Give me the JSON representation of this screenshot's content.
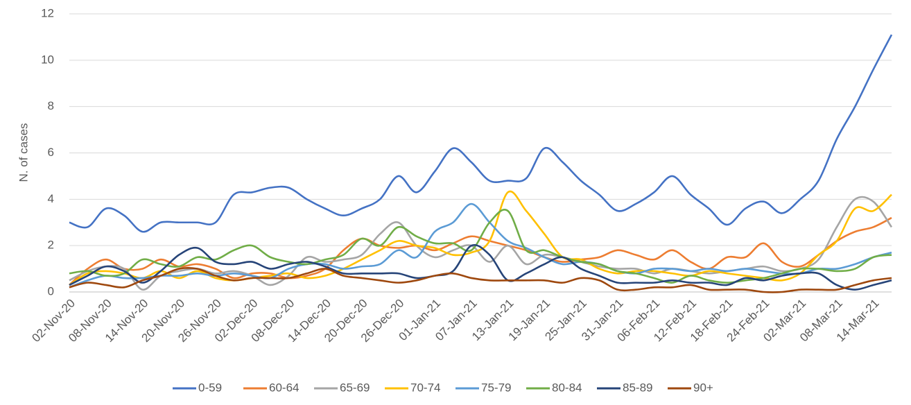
{
  "chart_data": {
    "type": "line",
    "y_label": "N. of cases",
    "categories": [
      "02-Nov-20",
      null,
      "08-Nov-20",
      null,
      "14-Nov-20",
      null,
      "20-Nov-20",
      null,
      "26-Nov-20",
      null,
      "02-Dec-20",
      null,
      "08-Dec-20",
      null,
      "14-Dec-20",
      null,
      "20-Dec-20",
      null,
      "26-Dec-20",
      null,
      "01-Jan-21",
      null,
      "07-Jan-21",
      null,
      "13-Jan-21",
      null,
      "19-Jan-21",
      null,
      "25-Jan-21",
      null,
      "31-Jan-21",
      null,
      "06-Feb-21",
      null,
      "12-Feb-21",
      null,
      "18-Feb-21",
      null,
      "24-Feb-21",
      null,
      "02-Mar-21",
      null,
      "08-Mar-21",
      null,
      "14-Mar-21",
      null
    ],
    "series": [
      {
        "name": "0-59",
        "color": "#4472c4",
        "values": [
          3.0,
          2.8,
          3.6,
          3.3,
          2.6,
          3.0,
          3.0,
          3.0,
          3.0,
          4.2,
          4.3,
          4.5,
          4.5,
          4.0,
          3.6,
          3.3,
          3.6,
          4.0,
          5.0,
          4.3,
          5.2,
          6.2,
          5.6,
          4.8,
          4.8,
          4.9,
          6.2,
          5.6,
          4.8,
          4.2,
          3.5,
          3.8,
          4.3,
          5.0,
          4.2,
          3.6,
          2.9,
          3.6,
          3.9,
          3.4,
          4.0,
          4.8,
          6.6,
          8.0,
          9.6,
          11.1
        ]
      },
      {
        "name": "60-64",
        "color": "#ed7d31",
        "values": [
          0.3,
          1.0,
          1.4,
          1.0,
          1.0,
          1.4,
          1.1,
          1.2,
          1.0,
          0.6,
          0.8,
          0.8,
          0.6,
          0.7,
          1.0,
          1.8,
          2.3,
          2.0,
          1.9,
          2.0,
          1.8,
          2.1,
          2.4,
          2.2,
          2.0,
          1.8,
          1.5,
          1.3,
          1.4,
          1.5,
          1.8,
          1.6,
          1.4,
          1.8,
          1.3,
          1.0,
          1.5,
          1.5,
          2.1,
          1.3,
          1.1,
          1.6,
          2.2,
          2.6,
          2.8,
          3.2
        ]
      },
      {
        "name": "65-69",
        "color": "#a5a5a5",
        "values": [
          0.5,
          0.9,
          1.1,
          1.0,
          0.1,
          0.7,
          0.9,
          1.0,
          0.8,
          0.9,
          0.7,
          0.3,
          0.7,
          1.5,
          1.3,
          1.4,
          1.6,
          2.5,
          3.0,
          2.0,
          1.5,
          1.8,
          2.0,
          1.3,
          2.0,
          1.2,
          1.6,
          1.5,
          1.3,
          1.1,
          1.0,
          1.0,
          0.8,
          1.0,
          0.9,
          0.8,
          0.9,
          1.0,
          1.1,
          0.9,
          1.0,
          1.4,
          2.8,
          4.0,
          3.9,
          2.8
        ]
      },
      {
        "name": "70-74",
        "color": "#ffc000",
        "values": [
          0.3,
          0.8,
          0.9,
          0.8,
          0.6,
          0.9,
          0.6,
          0.9,
          0.6,
          0.5,
          0.6,
          0.7,
          0.8,
          0.6,
          0.7,
          1.0,
          1.4,
          1.8,
          2.2,
          2.0,
          1.9,
          1.6,
          1.7,
          2.2,
          4.3,
          3.5,
          2.5,
          1.5,
          1.4,
          1.0,
          0.8,
          0.9,
          0.9,
          0.8,
          0.7,
          0.9,
          0.8,
          0.7,
          0.6,
          0.5,
          0.8,
          1.6,
          2.2,
          3.6,
          3.5,
          4.2
        ]
      },
      {
        "name": "75-79",
        "color": "#5b9bd5",
        "values": [
          0.2,
          0.5,
          0.7,
          0.6,
          0.6,
          0.7,
          0.7,
          0.8,
          0.7,
          0.8,
          0.7,
          0.6,
          1.0,
          1.2,
          1.2,
          1.0,
          1.1,
          1.2,
          1.8,
          1.5,
          2.6,
          3.0,
          3.8,
          3.0,
          2.2,
          1.9,
          1.5,
          1.2,
          1.3,
          1.2,
          0.9,
          0.8,
          1.0,
          1.0,
          0.9,
          1.0,
          0.9,
          1.0,
          0.9,
          0.8,
          0.8,
          1.0,
          1.0,
          1.2,
          1.5,
          1.7
        ]
      },
      {
        "name": "80-84",
        "color": "#70ad47",
        "values": [
          0.8,
          0.9,
          0.7,
          0.8,
          1.4,
          1.2,
          1.1,
          1.5,
          1.4,
          1.8,
          2.0,
          1.5,
          1.3,
          1.2,
          1.4,
          1.6,
          2.3,
          2.0,
          2.8,
          2.4,
          2.1,
          2.1,
          1.8,
          3.0,
          3.5,
          1.8,
          1.8,
          1.5,
          1.3,
          1.2,
          0.9,
          0.8,
          0.6,
          0.4,
          0.7,
          0.5,
          0.4,
          0.5,
          0.6,
          0.8,
          1.0,
          1.0,
          0.9,
          1.0,
          1.5,
          1.6
        ]
      },
      {
        "name": "85-89",
        "color": "#264478",
        "values": [
          0.3,
          0.7,
          1.1,
          0.9,
          0.4,
          0.9,
          1.6,
          1.9,
          1.3,
          1.2,
          1.3,
          1.0,
          1.2,
          1.3,
          1.1,
          0.8,
          0.8,
          0.8,
          0.8,
          0.6,
          0.7,
          0.9,
          2.0,
          1.6,
          0.5,
          0.8,
          1.2,
          1.5,
          1.0,
          0.7,
          0.4,
          0.4,
          0.4,
          0.5,
          0.4,
          0.4,
          0.3,
          0.6,
          0.5,
          0.7,
          0.8,
          0.8,
          0.3,
          0.1,
          0.3,
          0.5
        ]
      },
      {
        "name": "90+",
        "color": "#9e480e",
        "values": [
          0.2,
          0.4,
          0.3,
          0.2,
          0.5,
          0.7,
          1.0,
          1.0,
          0.7,
          0.5,
          0.6,
          0.6,
          0.6,
          0.8,
          1.0,
          0.7,
          0.6,
          0.5,
          0.4,
          0.5,
          0.7,
          0.8,
          0.6,
          0.5,
          0.5,
          0.5,
          0.5,
          0.4,
          0.6,
          0.5,
          0.1,
          0.1,
          0.2,
          0.2,
          0.3,
          0.1,
          0.1,
          0.1,
          0.0,
          0.0,
          0.1,
          0.1,
          0.1,
          0.3,
          0.5,
          0.6
        ]
      }
    ],
    "ylim": [
      0,
      12
    ],
    "yticks": [
      0,
      2,
      4,
      6,
      8,
      10,
      12
    ],
    "grid": true,
    "legend": "bottom"
  }
}
